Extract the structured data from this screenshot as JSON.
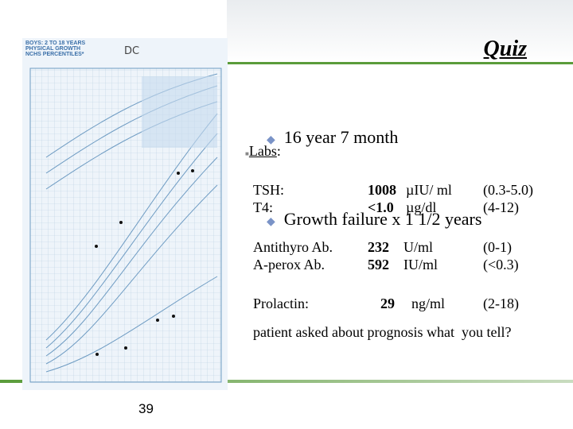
{
  "slide": {
    "title": "Quiz",
    "bullets": [
      "16 year 7 month",
      "Growth failure x 1 1/2 years"
    ],
    "labs_heading": "Labs",
    "labs_colon": ":",
    "labs": [
      {
        "test": "TSH:",
        "value": "1008",
        "unit": "µIU/ ml",
        "range": "(0.3-5.0)"
      },
      {
        "test": "T4:",
        "value": "<1.0",
        "unit": "µg/dl",
        "range": "(4-12)"
      },
      {
        "test": "Antithyro Ab.",
        "value": "232",
        "unit": "U/ml",
        "range": "(0-1)"
      },
      {
        "test": "A-perox Ab.",
        "value": "592",
        "unit": "IU/ml",
        "range": "(<0.3)"
      },
      {
        "test": "Prolactin:",
        "value": "29",
        "unit": "ng/ml",
        "range": "(2-18)"
      }
    ],
    "question": "patient asked about prognosis what  you tell?",
    "page_number": "39",
    "growth_chart": {
      "header": "BOYS: 2 TO 18 YEARS\nPHYSICAL GROWTH\nNCHS PERCENTILES*",
      "initials": "DC"
    }
  }
}
